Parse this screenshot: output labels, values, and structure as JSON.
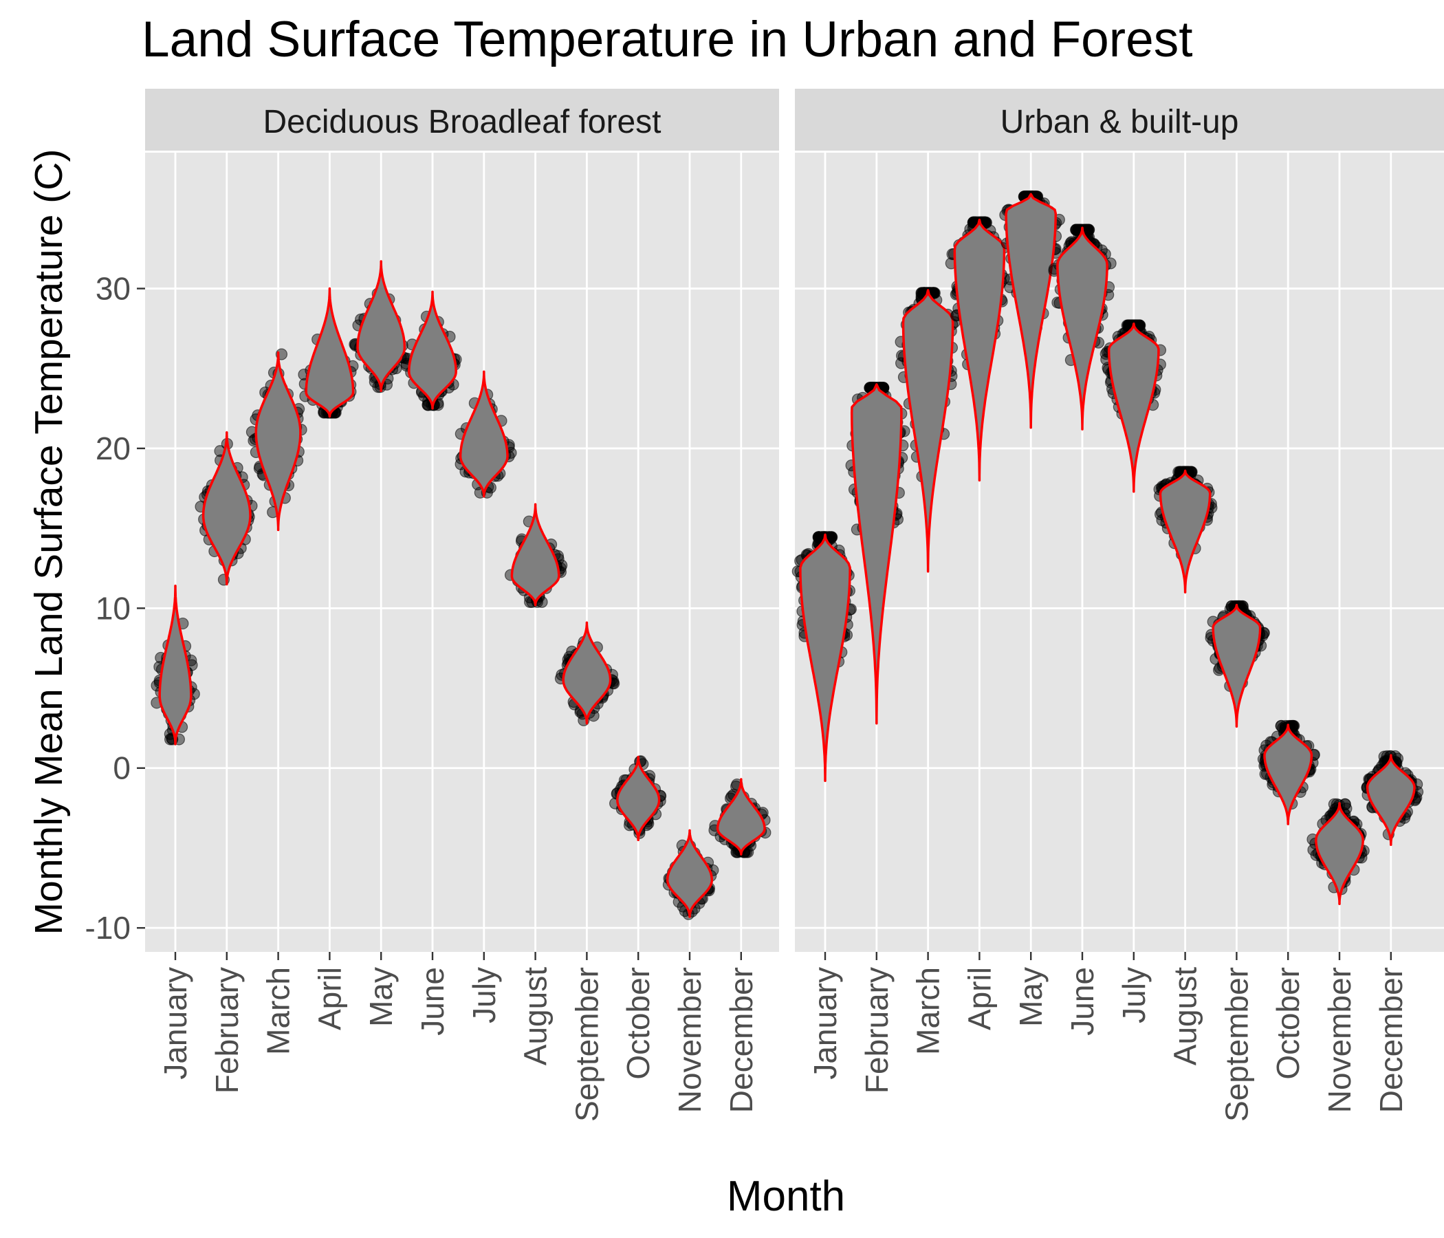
{
  "chart_data": {
    "type": "violin",
    "title": "Land Surface Temperature in Urban and Forest",
    "xlabel": "Month",
    "ylabel": "Monthly Mean Land Surface Temperature (C)",
    "ylim": [
      -11.5,
      38.5
    ],
    "yticks": [
      -10,
      0,
      10,
      20,
      30
    ],
    "grid": true,
    "legend": "none",
    "categories": [
      "January",
      "February",
      "March",
      "April",
      "May",
      "June",
      "July",
      "August",
      "September",
      "October",
      "November",
      "December"
    ],
    "colors": {
      "panel_bg": "#e5e5e5",
      "strip_bg": "#d9d9d9",
      "grid": "#ffffff",
      "violin_fill": "#7f7f7f",
      "violin_outline": "#ff0000",
      "points": "#000000"
    },
    "panels": [
      {
        "name": "Deciduous Broadleaf forest",
        "series": [
          {
            "month": "January",
            "min": 1.5,
            "max": 11.4,
            "mode": 4.5,
            "width": 0.6
          },
          {
            "month": "February",
            "min": 11.5,
            "max": 21.0,
            "mode": 15.8,
            "width": 0.9
          },
          {
            "month": "March",
            "min": 14.9,
            "max": 26.0,
            "mode": 21.0,
            "width": 0.85
          },
          {
            "month": "April",
            "min": 22.0,
            "max": 30.0,
            "mode": 23.5,
            "width": 0.9
          },
          {
            "month": "May",
            "min": 23.6,
            "max": 31.7,
            "mode": 26.3,
            "width": 0.9
          },
          {
            "month": "June",
            "min": 22.5,
            "max": 29.8,
            "mode": 24.8,
            "width": 0.9
          },
          {
            "month": "July",
            "min": 17.0,
            "max": 24.8,
            "mode": 19.5,
            "width": 0.9
          },
          {
            "month": "August",
            "min": 10.2,
            "max": 16.5,
            "mode": 12.0,
            "width": 0.9
          },
          {
            "month": "September",
            "min": 2.8,
            "max": 9.1,
            "mode": 5.5,
            "width": 0.9
          },
          {
            "month": "October",
            "min": -4.5,
            "max": 0.7,
            "mode": -2.0,
            "width": 0.8
          },
          {
            "month": "November",
            "min": -9.3,
            "max": -3.9,
            "mode": -7.0,
            "width": 0.85
          },
          {
            "month": "December",
            "min": -5.4,
            "max": -0.7,
            "mode": -3.8,
            "width": 0.9
          }
        ]
      },
      {
        "name": "Urban & built-up",
        "series": [
          {
            "month": "January",
            "min": -0.8,
            "max": 14.6,
            "mode": 12.5,
            "width": 0.95
          },
          {
            "month": "February",
            "min": 2.8,
            "max": 24.0,
            "mode": 22.5,
            "width": 0.95
          },
          {
            "month": "March",
            "min": 12.3,
            "max": 29.9,
            "mode": 28.0,
            "width": 0.95
          },
          {
            "month": "April",
            "min": 18.0,
            "max": 34.3,
            "mode": 32.5,
            "width": 0.95
          },
          {
            "month": "May",
            "min": 21.3,
            "max": 35.9,
            "mode": 34.8,
            "width": 0.95
          },
          {
            "month": "June",
            "min": 21.2,
            "max": 33.8,
            "mode": 31.5,
            "width": 0.95
          },
          {
            "month": "July",
            "min": 17.3,
            "max": 27.8,
            "mode": 26.2,
            "width": 0.95
          },
          {
            "month": "August",
            "min": 11.0,
            "max": 18.6,
            "mode": 17.2,
            "width": 0.95
          },
          {
            "month": "September",
            "min": 2.6,
            "max": 10.2,
            "mode": 8.8,
            "width": 0.9
          },
          {
            "month": "October",
            "min": -3.5,
            "max": 2.7,
            "mode": 0.8,
            "width": 0.9
          },
          {
            "month": "November",
            "min": -8.5,
            "max": -2.2,
            "mode": -4.5,
            "width": 0.9
          },
          {
            "month": "December",
            "min": -4.8,
            "max": 0.8,
            "mode": -1.2,
            "width": 0.9
          }
        ]
      }
    ]
  }
}
